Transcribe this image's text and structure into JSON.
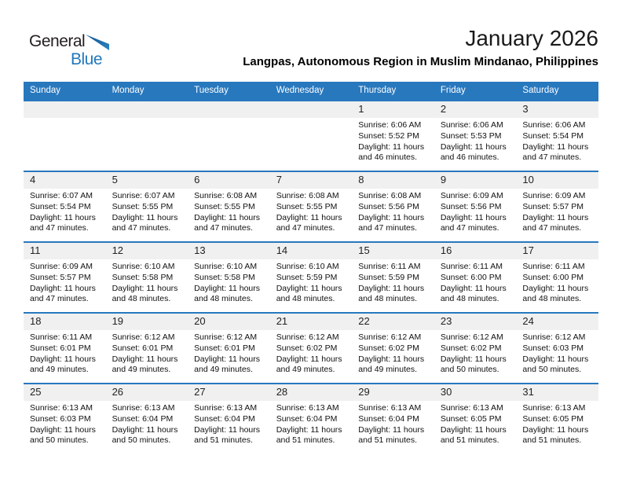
{
  "logo": {
    "part1": "General",
    "part2": "Blue"
  },
  "header": {
    "title": "January 2026",
    "subtitle": "Langpas, Autonomous Region in Muslim Mindanao, Philippines"
  },
  "colors": {
    "accent_blue": "#2878BE",
    "band_gray": "#F0F0F0",
    "logo_blue": "#2178BE"
  },
  "calendar": {
    "day_headers": [
      "Sunday",
      "Monday",
      "Tuesday",
      "Wednesday",
      "Thursday",
      "Friday",
      "Saturday"
    ],
    "weeks": [
      [
        null,
        null,
        null,
        null,
        {
          "day": "1",
          "sunrise": "Sunrise: 6:06 AM",
          "sunset": "Sunset: 5:52 PM",
          "daylight1": "Daylight: 11 hours",
          "daylight2": "and 46 minutes."
        },
        {
          "day": "2",
          "sunrise": "Sunrise: 6:06 AM",
          "sunset": "Sunset: 5:53 PM",
          "daylight1": "Daylight: 11 hours",
          "daylight2": "and 46 minutes."
        },
        {
          "day": "3",
          "sunrise": "Sunrise: 6:06 AM",
          "sunset": "Sunset: 5:54 PM",
          "daylight1": "Daylight: 11 hours",
          "daylight2": "and 47 minutes."
        }
      ],
      [
        {
          "day": "4",
          "sunrise": "Sunrise: 6:07 AM",
          "sunset": "Sunset: 5:54 PM",
          "daylight1": "Daylight: 11 hours",
          "daylight2": "and 47 minutes."
        },
        {
          "day": "5",
          "sunrise": "Sunrise: 6:07 AM",
          "sunset": "Sunset: 5:55 PM",
          "daylight1": "Daylight: 11 hours",
          "daylight2": "and 47 minutes."
        },
        {
          "day": "6",
          "sunrise": "Sunrise: 6:08 AM",
          "sunset": "Sunset: 5:55 PM",
          "daylight1": "Daylight: 11 hours",
          "daylight2": "and 47 minutes."
        },
        {
          "day": "7",
          "sunrise": "Sunrise: 6:08 AM",
          "sunset": "Sunset: 5:55 PM",
          "daylight1": "Daylight: 11 hours",
          "daylight2": "and 47 minutes."
        },
        {
          "day": "8",
          "sunrise": "Sunrise: 6:08 AM",
          "sunset": "Sunset: 5:56 PM",
          "daylight1": "Daylight: 11 hours",
          "daylight2": "and 47 minutes."
        },
        {
          "day": "9",
          "sunrise": "Sunrise: 6:09 AM",
          "sunset": "Sunset: 5:56 PM",
          "daylight1": "Daylight: 11 hours",
          "daylight2": "and 47 minutes."
        },
        {
          "day": "10",
          "sunrise": "Sunrise: 6:09 AM",
          "sunset": "Sunset: 5:57 PM",
          "daylight1": "Daylight: 11 hours",
          "daylight2": "and 47 minutes."
        }
      ],
      [
        {
          "day": "11",
          "sunrise": "Sunrise: 6:09 AM",
          "sunset": "Sunset: 5:57 PM",
          "daylight1": "Daylight: 11 hours",
          "daylight2": "and 47 minutes."
        },
        {
          "day": "12",
          "sunrise": "Sunrise: 6:10 AM",
          "sunset": "Sunset: 5:58 PM",
          "daylight1": "Daylight: 11 hours",
          "daylight2": "and 48 minutes."
        },
        {
          "day": "13",
          "sunrise": "Sunrise: 6:10 AM",
          "sunset": "Sunset: 5:58 PM",
          "daylight1": "Daylight: 11 hours",
          "daylight2": "and 48 minutes."
        },
        {
          "day": "14",
          "sunrise": "Sunrise: 6:10 AM",
          "sunset": "Sunset: 5:59 PM",
          "daylight1": "Daylight: 11 hours",
          "daylight2": "and 48 minutes."
        },
        {
          "day": "15",
          "sunrise": "Sunrise: 6:11 AM",
          "sunset": "Sunset: 5:59 PM",
          "daylight1": "Daylight: 11 hours",
          "daylight2": "and 48 minutes."
        },
        {
          "day": "16",
          "sunrise": "Sunrise: 6:11 AM",
          "sunset": "Sunset: 6:00 PM",
          "daylight1": "Daylight: 11 hours",
          "daylight2": "and 48 minutes."
        },
        {
          "day": "17",
          "sunrise": "Sunrise: 6:11 AM",
          "sunset": "Sunset: 6:00 PM",
          "daylight1": "Daylight: 11 hours",
          "daylight2": "and 48 minutes."
        }
      ],
      [
        {
          "day": "18",
          "sunrise": "Sunrise: 6:11 AM",
          "sunset": "Sunset: 6:01 PM",
          "daylight1": "Daylight: 11 hours",
          "daylight2": "and 49 minutes."
        },
        {
          "day": "19",
          "sunrise": "Sunrise: 6:12 AM",
          "sunset": "Sunset: 6:01 PM",
          "daylight1": "Daylight: 11 hours",
          "daylight2": "and 49 minutes."
        },
        {
          "day": "20",
          "sunrise": "Sunrise: 6:12 AM",
          "sunset": "Sunset: 6:01 PM",
          "daylight1": "Daylight: 11 hours",
          "daylight2": "and 49 minutes."
        },
        {
          "day": "21",
          "sunrise": "Sunrise: 6:12 AM",
          "sunset": "Sunset: 6:02 PM",
          "daylight1": "Daylight: 11 hours",
          "daylight2": "and 49 minutes."
        },
        {
          "day": "22",
          "sunrise": "Sunrise: 6:12 AM",
          "sunset": "Sunset: 6:02 PM",
          "daylight1": "Daylight: 11 hours",
          "daylight2": "and 49 minutes."
        },
        {
          "day": "23",
          "sunrise": "Sunrise: 6:12 AM",
          "sunset": "Sunset: 6:02 PM",
          "daylight1": "Daylight: 11 hours",
          "daylight2": "and 50 minutes."
        },
        {
          "day": "24",
          "sunrise": "Sunrise: 6:12 AM",
          "sunset": "Sunset: 6:03 PM",
          "daylight1": "Daylight: 11 hours",
          "daylight2": "and 50 minutes."
        }
      ],
      [
        {
          "day": "25",
          "sunrise": "Sunrise: 6:13 AM",
          "sunset": "Sunset: 6:03 PM",
          "daylight1": "Daylight: 11 hours",
          "daylight2": "and 50 minutes."
        },
        {
          "day": "26",
          "sunrise": "Sunrise: 6:13 AM",
          "sunset": "Sunset: 6:04 PM",
          "daylight1": "Daylight: 11 hours",
          "daylight2": "and 50 minutes."
        },
        {
          "day": "27",
          "sunrise": "Sunrise: 6:13 AM",
          "sunset": "Sunset: 6:04 PM",
          "daylight1": "Daylight: 11 hours",
          "daylight2": "and 51 minutes."
        },
        {
          "day": "28",
          "sunrise": "Sunrise: 6:13 AM",
          "sunset": "Sunset: 6:04 PM",
          "daylight1": "Daylight: 11 hours",
          "daylight2": "and 51 minutes."
        },
        {
          "day": "29",
          "sunrise": "Sunrise: 6:13 AM",
          "sunset": "Sunset: 6:04 PM",
          "daylight1": "Daylight: 11 hours",
          "daylight2": "and 51 minutes."
        },
        {
          "day": "30",
          "sunrise": "Sunrise: 6:13 AM",
          "sunset": "Sunset: 6:05 PM",
          "daylight1": "Daylight: 11 hours",
          "daylight2": "and 51 minutes."
        },
        {
          "day": "31",
          "sunrise": "Sunrise: 6:13 AM",
          "sunset": "Sunset: 6:05 PM",
          "daylight1": "Daylight: 11 hours",
          "daylight2": "and 51 minutes."
        }
      ]
    ]
  }
}
